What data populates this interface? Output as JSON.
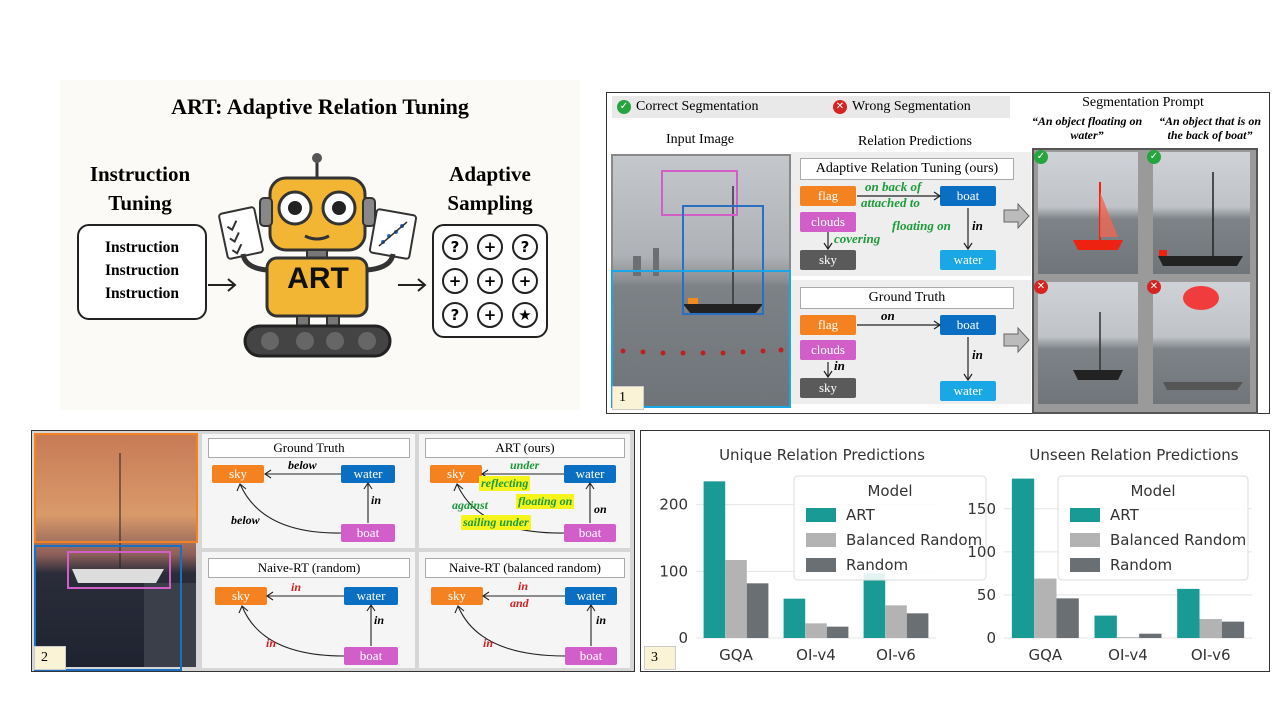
{
  "panel0": {
    "title": "ART: Adaptive Relation Tuning",
    "left_header": "Instruction\nTuning",
    "right_header": "Adaptive\nSampling",
    "instruction_lines": [
      "Instruction",
      "Instruction",
      "Instruction"
    ],
    "robot_label": "ART",
    "sampling_symbols": [
      "?",
      "+",
      "?",
      "+",
      "+",
      "+",
      "?",
      "+",
      "★"
    ]
  },
  "panel1": {
    "number": "1",
    "legend_correct": "Correct Segmentation",
    "legend_wrong": "Wrong Segmentation",
    "prompt_title": "Segmentation Prompt",
    "prompt_left": "“An object floating on water”",
    "prompt_right": "“An object that is on the back of boat”",
    "input_image_label": "Input Image",
    "relation_predictions_label": "Relation Predictions",
    "art_box_title": "Adaptive Relation Tuning (ours)",
    "gt_box_title": "Ground Truth",
    "art_graph": {
      "nodes": [
        "flag",
        "boat",
        "clouds",
        "sky",
        "water"
      ],
      "relations": [
        "on back of",
        "attached to",
        "floating on",
        "in",
        "covering"
      ]
    },
    "gt_graph": {
      "nodes": [
        "flag",
        "boat",
        "clouds",
        "sky",
        "water"
      ],
      "relations": [
        "on",
        "in",
        "in"
      ]
    }
  },
  "panel2": {
    "number": "2",
    "gt_title": "Ground Truth",
    "art_title": "ART (ours)",
    "naive_random_title": "Naive-RT (random)",
    "naive_balanced_title": "Naive-RT (balanced random)",
    "gt_graph": {
      "nodes": [
        "sky",
        "water",
        "boat"
      ],
      "relations": [
        "below",
        "below",
        "in"
      ]
    },
    "art_graph": {
      "nodes": [
        "sky",
        "water",
        "boat"
      ],
      "relations": [
        "under",
        "reflecting",
        "floating on",
        "against",
        "sailing under",
        "on"
      ]
    },
    "naive_random_graph": {
      "nodes": [
        "sky",
        "water",
        "boat"
      ],
      "relations": [
        "in",
        "in",
        "in"
      ]
    },
    "naive_balanced_graph": {
      "nodes": [
        "sky",
        "water",
        "boat"
      ],
      "relations": [
        "in",
        "and",
        "in",
        "in"
      ]
    }
  },
  "panel3": {
    "number": "3",
    "legend_title": "Model"
  },
  "chart_data": [
    {
      "type": "bar",
      "title": "Unique Relation Predictions",
      "categories": [
        "GQA",
        "OI-v4",
        "OI-v6"
      ],
      "series": [
        {
          "name": "ART",
          "values": [
            235,
            59,
            97
          ],
          "color": "#1a9a95"
        },
        {
          "name": "Balanced Random",
          "values": [
            117,
            22,
            49
          ],
          "color": "#b3b3b3"
        },
        {
          "name": "Random",
          "values": [
            82,
            17,
            37
          ],
          "color": "#6a6f73"
        }
      ],
      "yticks": [
        0,
        100,
        200
      ],
      "ylim": [
        0,
        252
      ],
      "legend": "top-right",
      "legend_title": "Model",
      "grid": true
    },
    {
      "type": "bar",
      "title": "Unseen Relation Predictions",
      "categories": [
        "GQA",
        "OI-v4",
        "OI-v6"
      ],
      "series": [
        {
          "name": "ART",
          "values": [
            185,
            26,
            57
          ],
          "color": "#1a9a95"
        },
        {
          "name": "Balanced Random",
          "values": [
            69,
            1,
            22
          ],
          "color": "#b3b3b3"
        },
        {
          "name": "Random",
          "values": [
            46,
            5,
            19
          ],
          "color": "#6a6f73"
        }
      ],
      "yticks": [
        0,
        50,
        100,
        150
      ],
      "ylim": [
        0,
        195
      ],
      "legend": "top-right",
      "legend_title": "Model",
      "grid": true
    }
  ]
}
